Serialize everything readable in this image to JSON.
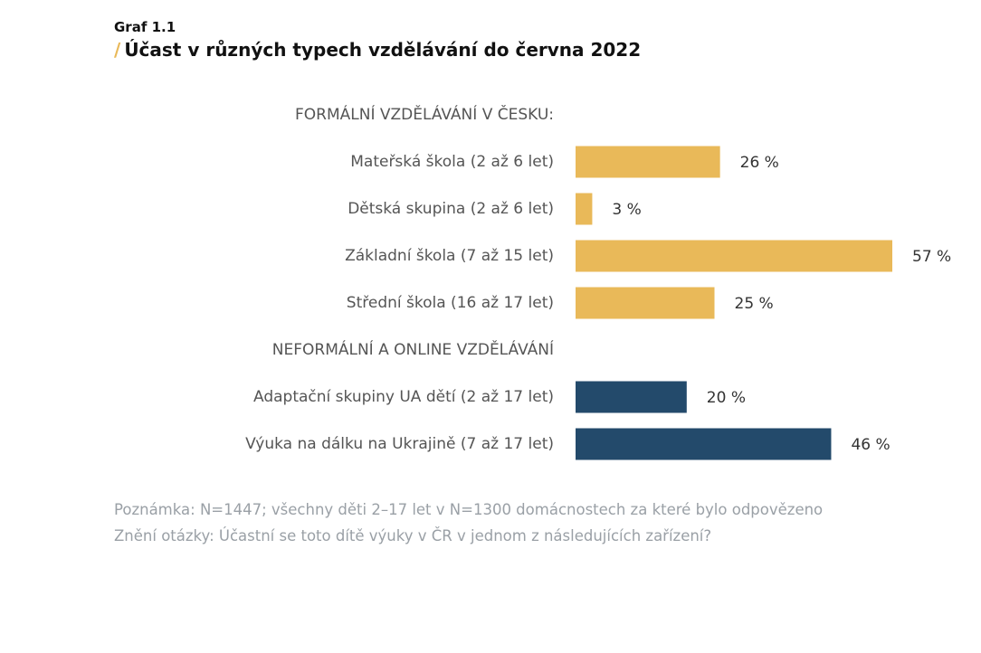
{
  "header": {
    "graf_label": "Graf 1.1",
    "title_slash": "/",
    "title": "Účast v různých typech vzdělávání do června 2022"
  },
  "colors": {
    "formal": "#e9b959",
    "nonformal": "#234a6b",
    "accent": "#e9b959",
    "label_text": "#555555",
    "note_text": "#9aa0a6"
  },
  "chart_data": {
    "type": "bar",
    "orientation": "horizontal",
    "xlim": [
      0,
      57
    ],
    "value_suffix": " %",
    "groups": [
      {
        "heading": "FORMÁLNÍ VZDĚLÁVÁNÍ V ČESKU:",
        "color": "#e9b959",
        "categories": [
          "Mateřská škola (2 až 6 let)",
          "Dětská skupina (2 až 6 let)",
          "Základní škola (7 až 15 let)",
          "Střední škola (16 až 17 let)"
        ],
        "values": [
          26,
          3,
          57,
          25
        ]
      },
      {
        "heading": "NEFORMÁLNÍ A ONLINE VZDĚLÁVÁNÍ",
        "color": "#234a6b",
        "categories": [
          "Adaptační skupiny UA dětí (2 až 17 let)",
          "Výuka na dálku na Ukrajině (7 až 17 let)"
        ],
        "values": [
          20,
          46
        ]
      }
    ]
  },
  "notes": {
    "line1": "Poznámka: N=1447; všechny děti 2–17 let v N=1300 domácnostech za které bylo odpovězeno",
    "line2": "Znění otázky: Účastní se toto dítě výuky v ČR v jednom z následujících zařízení?"
  }
}
